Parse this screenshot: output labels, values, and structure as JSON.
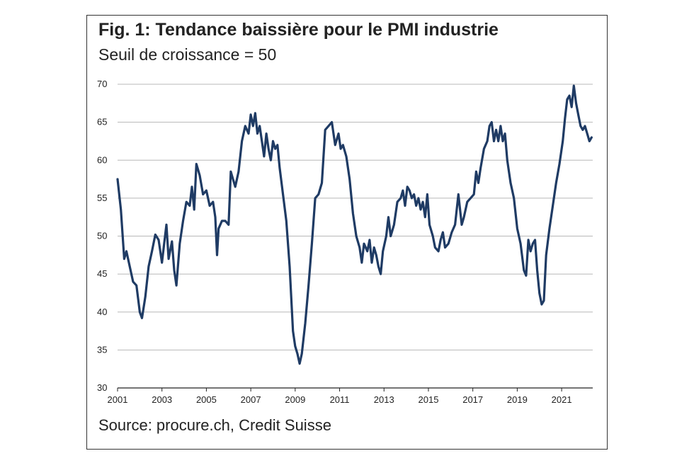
{
  "title": "Fig. 1: Tendance baissière pour le PMI industrie",
  "subtitle": "Seuil de croissance = 50",
  "source": "Source: procure.ch, Credit Suisse",
  "colors": {
    "line": "#1f3b64",
    "grid": "#b8b8b8",
    "axis": "#222222"
  },
  "chart_data": {
    "type": "line",
    "title": "Fig. 1: Tendance baissière pour le PMI industrie",
    "subtitle": "Seuil de croissance = 50",
    "xlabel": "",
    "ylabel": "",
    "xlim": [
      2001,
      2022.4
    ],
    "ylim": [
      30,
      70
    ],
    "grid": true,
    "y_ticks": [
      30,
      35,
      40,
      45,
      50,
      55,
      60,
      65,
      70
    ],
    "x_ticks": [
      2001,
      2003,
      2005,
      2007,
      2009,
      2011,
      2013,
      2015,
      2017,
      2019,
      2021
    ],
    "series": [
      {
        "values": [
          [
            2001.0,
            57.5
          ],
          [
            2001.15,
            53.5
          ],
          [
            2001.3,
            47.0
          ],
          [
            2001.4,
            48.0
          ],
          [
            2001.55,
            46.0
          ],
          [
            2001.7,
            44.0
          ],
          [
            2001.85,
            43.5
          ],
          [
            2002.0,
            40.0
          ],
          [
            2002.1,
            39.2
          ],
          [
            2002.25,
            42.0
          ],
          [
            2002.4,
            46.0
          ],
          [
            2002.55,
            48.0
          ],
          [
            2002.7,
            50.2
          ],
          [
            2002.85,
            49.5
          ],
          [
            2003.0,
            46.5
          ],
          [
            2003.1,
            49.0
          ],
          [
            2003.2,
            51.5
          ],
          [
            2003.3,
            47.0
          ],
          [
            2003.45,
            49.3
          ],
          [
            2003.55,
            45.5
          ],
          [
            2003.65,
            43.5
          ],
          [
            2003.8,
            49.0
          ],
          [
            2003.95,
            52.0
          ],
          [
            2004.1,
            54.5
          ],
          [
            2004.25,
            54.0
          ],
          [
            2004.35,
            56.5
          ],
          [
            2004.45,
            53.5
          ],
          [
            2004.55,
            59.5
          ],
          [
            2004.7,
            58.0
          ],
          [
            2004.85,
            55.5
          ],
          [
            2005.0,
            56.0
          ],
          [
            2005.15,
            54.0
          ],
          [
            2005.3,
            54.5
          ],
          [
            2005.4,
            52.5
          ],
          [
            2005.48,
            47.5
          ],
          [
            2005.55,
            51.0
          ],
          [
            2005.7,
            52.0
          ],
          [
            2005.85,
            52.0
          ],
          [
            2006.0,
            51.5
          ],
          [
            2006.1,
            58.5
          ],
          [
            2006.2,
            57.5
          ],
          [
            2006.3,
            56.5
          ],
          [
            2006.45,
            58.5
          ],
          [
            2006.6,
            62.5
          ],
          [
            2006.75,
            64.5
          ],
          [
            2006.9,
            63.5
          ],
          [
            2007.0,
            66.0
          ],
          [
            2007.1,
            64.5
          ],
          [
            2007.2,
            66.2
          ],
          [
            2007.3,
            63.5
          ],
          [
            2007.4,
            64.5
          ],
          [
            2007.5,
            62.5
          ],
          [
            2007.6,
            60.5
          ],
          [
            2007.7,
            63.5
          ],
          [
            2007.8,
            61.5
          ],
          [
            2007.9,
            60.0
          ],
          [
            2008.0,
            62.5
          ],
          [
            2008.1,
            61.5
          ],
          [
            2008.2,
            62.0
          ],
          [
            2008.3,
            59.0
          ],
          [
            2008.45,
            55.5
          ],
          [
            2008.6,
            52.0
          ],
          [
            2008.75,
            46.0
          ],
          [
            2008.9,
            37.5
          ],
          [
            2009.0,
            35.5
          ],
          [
            2009.1,
            34.5
          ],
          [
            2009.2,
            33.2
          ],
          [
            2009.3,
            34.5
          ],
          [
            2009.45,
            38.5
          ],
          [
            2009.6,
            43.5
          ],
          [
            2009.75,
            49.0
          ],
          [
            2009.9,
            55.0
          ],
          [
            2010.05,
            55.5
          ],
          [
            2010.2,
            57.0
          ],
          [
            2010.35,
            64.0
          ],
          [
            2010.5,
            64.5
          ],
          [
            2010.65,
            65.0
          ],
          [
            2010.8,
            62.0
          ],
          [
            2010.95,
            63.5
          ],
          [
            2011.05,
            61.5
          ],
          [
            2011.15,
            62.0
          ],
          [
            2011.3,
            60.5
          ],
          [
            2011.45,
            57.5
          ],
          [
            2011.6,
            53.0
          ],
          [
            2011.75,
            50.0
          ],
          [
            2011.9,
            48.5
          ],
          [
            2012.0,
            46.5
          ],
          [
            2012.1,
            49.0
          ],
          [
            2012.25,
            48.0
          ],
          [
            2012.35,
            49.5
          ],
          [
            2012.45,
            46.5
          ],
          [
            2012.55,
            48.5
          ],
          [
            2012.65,
            47.5
          ],
          [
            2012.75,
            46.0
          ],
          [
            2012.85,
            45.0
          ],
          [
            2012.95,
            48.0
          ],
          [
            2013.1,
            50.0
          ],
          [
            2013.2,
            52.5
          ],
          [
            2013.3,
            50.0
          ],
          [
            2013.45,
            51.5
          ],
          [
            2013.6,
            54.5
          ],
          [
            2013.75,
            55.0
          ],
          [
            2013.85,
            56.0
          ],
          [
            2013.95,
            54.0
          ],
          [
            2014.05,
            56.5
          ],
          [
            2014.15,
            56.0
          ],
          [
            2014.25,
            55.0
          ],
          [
            2014.35,
            55.5
          ],
          [
            2014.45,
            54.0
          ],
          [
            2014.55,
            55.0
          ],
          [
            2014.65,
            53.5
          ],
          [
            2014.75,
            54.5
          ],
          [
            2014.85,
            52.5
          ],
          [
            2014.95,
            55.5
          ],
          [
            2015.05,
            51.5
          ],
          [
            2015.2,
            50.0
          ],
          [
            2015.3,
            48.5
          ],
          [
            2015.45,
            48.0
          ],
          [
            2015.55,
            49.5
          ],
          [
            2015.65,
            50.5
          ],
          [
            2015.75,
            48.5
          ],
          [
            2015.9,
            49.0
          ],
          [
            2016.05,
            50.5
          ],
          [
            2016.2,
            51.5
          ],
          [
            2016.35,
            55.5
          ],
          [
            2016.5,
            51.5
          ],
          [
            2016.6,
            52.5
          ],
          [
            2016.75,
            54.5
          ],
          [
            2016.9,
            55.0
          ],
          [
            2017.05,
            55.5
          ],
          [
            2017.15,
            58.5
          ],
          [
            2017.25,
            57.0
          ],
          [
            2017.35,
            59.0
          ],
          [
            2017.5,
            61.5
          ],
          [
            2017.65,
            62.5
          ],
          [
            2017.75,
            64.5
          ],
          [
            2017.85,
            65.0
          ],
          [
            2017.95,
            62.5
          ],
          [
            2018.05,
            64.0
          ],
          [
            2018.15,
            62.5
          ],
          [
            2018.25,
            64.5
          ],
          [
            2018.35,
            62.5
          ],
          [
            2018.45,
            63.5
          ],
          [
            2018.55,
            60.0
          ],
          [
            2018.7,
            57.0
          ],
          [
            2018.85,
            55.0
          ],
          [
            2019.0,
            51.0
          ],
          [
            2019.15,
            49.0
          ],
          [
            2019.3,
            45.5
          ],
          [
            2019.4,
            44.8
          ],
          [
            2019.5,
            49.5
          ],
          [
            2019.6,
            48.0
          ],
          [
            2019.7,
            49.0
          ],
          [
            2019.8,
            49.5
          ],
          [
            2019.9,
            45.5
          ],
          [
            2020.0,
            42.5
          ],
          [
            2020.1,
            41.0
          ],
          [
            2020.2,
            41.5
          ],
          [
            2020.3,
            47.5
          ],
          [
            2020.45,
            51.0
          ],
          [
            2020.6,
            54.0
          ],
          [
            2020.75,
            57.0
          ],
          [
            2020.9,
            59.5
          ],
          [
            2021.05,
            62.5
          ],
          [
            2021.15,
            65.5
          ],
          [
            2021.25,
            68.0
          ],
          [
            2021.35,
            68.5
          ],
          [
            2021.45,
            67.0
          ],
          [
            2021.55,
            69.8
          ],
          [
            2021.65,
            67.5
          ],
          [
            2021.75,
            66.0
          ],
          [
            2021.85,
            64.5
          ],
          [
            2021.95,
            64.0
          ],
          [
            2022.05,
            64.5
          ],
          [
            2022.15,
            63.5
          ],
          [
            2022.25,
            62.5
          ],
          [
            2022.35,
            63.0
          ]
        ]
      }
    ]
  }
}
